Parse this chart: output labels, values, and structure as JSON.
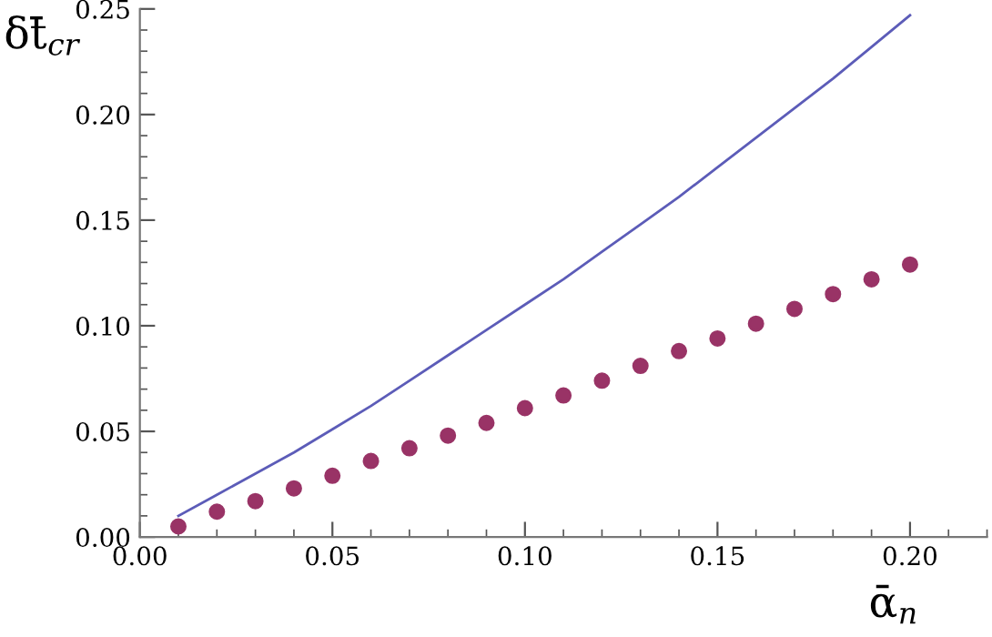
{
  "chart_data": {
    "type": "line",
    "xlabel": "ᾱ$_{n}$",
    "ylabel": "δt̄$_{cr}$",
    "xlim": [
      0,
      0.22
    ],
    "ylim": [
      0,
      0.25
    ],
    "xticks": [
      {
        "value": 0,
        "label": "0.00"
      },
      0.05,
      {
        "value": 0.1,
        "label": "0.10"
      },
      0.15,
      {
        "value": 0.2,
        "label": "0.20"
      }
    ],
    "yticks": [
      {
        "value": 0,
        "label": "0.00"
      },
      0.05,
      {
        "value": 0.1,
        "label": "0.10"
      },
      0.15,
      {
        "value": 0.2,
        "label": "0.20"
      },
      0.25
    ],
    "grid": false,
    "legend": false,
    "series": [
      {
        "color": "#5c5cb8",
        "marker": "none",
        "line_style": "solid",
        "x": [
          0.01,
          0.02,
          0.03,
          0.04,
          0.05,
          0.06,
          0.07,
          0.08,
          0.09,
          0.1,
          0.11,
          0.12,
          0.13,
          0.14,
          0.15,
          0.16,
          0.17,
          0.18,
          0.19,
          0.2
        ],
        "values": [
          0.01,
          0.02,
          0.03,
          0.04,
          0.051,
          0.062,
          0.074,
          0.086,
          0.098,
          0.11,
          0.122,
          0.135,
          0.148,
          0.161,
          0.175,
          0.189,
          0.203,
          0.217,
          0.232,
          0.247
        ]
      },
      {
        "type": "scatter",
        "color": "#993366",
        "marker": "circle",
        "x": [
          0.01,
          0.02,
          0.03,
          0.04,
          0.05,
          0.06,
          0.07,
          0.08,
          0.09,
          0.1,
          0.11,
          0.12,
          0.13,
          0.14,
          0.15,
          0.16,
          0.17,
          0.18,
          0.19,
          0.2
        ],
        "values": [
          0.005,
          0.012,
          0.017,
          0.023,
          0.029,
          0.036,
          0.042,
          0.048,
          0.054,
          0.061,
          0.067,
          0.074,
          0.081,
          0.088,
          0.094,
          0.101,
          0.108,
          0.115,
          0.122,
          0.129
        ]
      }
    ]
  }
}
